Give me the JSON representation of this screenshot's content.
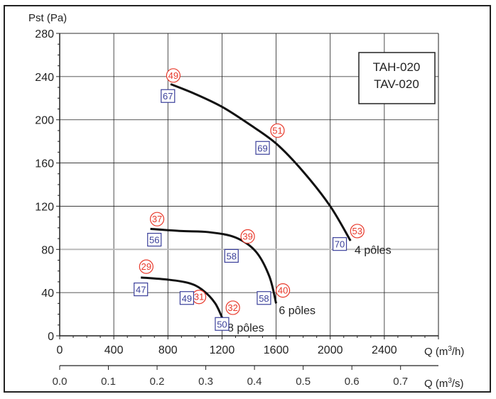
{
  "chart_data": {
    "type": "line",
    "ylabel": "Pst (Pa)",
    "xlabel": "Q (m³/h)",
    "xlabel2": "Q (m³/s)",
    "xlim": [
      0,
      2800
    ],
    "ylim": [
      0,
      280
    ],
    "xticks": [
      0,
      400,
      800,
      1200,
      1600,
      2000,
      2400
    ],
    "yticks": [
      0,
      40,
      80,
      120,
      160,
      200,
      240,
      280
    ],
    "x2ticks": [
      "0.0",
      "0.1",
      "0.2",
      "0.3",
      "0.4",
      "0.5",
      "0.6",
      "0.7"
    ],
    "grid": true,
    "legend_box": [
      "TAH-020",
      "TAV-020"
    ],
    "legend_placement": "top-right",
    "series": [
      {
        "name": "4 pôles",
        "x": [
          820,
          1000,
          1200,
          1400,
          1600,
          1800,
          2000,
          2150
        ],
        "y": [
          233,
          224,
          212,
          196,
          178,
          152,
          120,
          88
        ]
      },
      {
        "name": "6 pôles",
        "x": [
          670,
          900,
          1100,
          1300,
          1450,
          1550,
          1600
        ],
        "y": [
          99,
          97,
          96,
          91,
          78,
          55,
          30
        ]
      },
      {
        "name": "8 pôles",
        "x": [
          600,
          800,
          950,
          1050,
          1150,
          1220
        ],
        "y": [
          54,
          52,
          49,
          43,
          30,
          11
        ]
      }
    ],
    "series_labels": [
      {
        "text": "4 pôles",
        "x": 2180,
        "y": 80
      },
      {
        "text": "6 pôles",
        "x": 1620,
        "y": 24
      },
      {
        "text": "8 pôles",
        "x": 1240,
        "y": 8
      }
    ],
    "circle_annotations": [
      {
        "text": "49",
        "x": 840,
        "y": 241
      },
      {
        "text": "51",
        "x": 1610,
        "y": 190
      },
      {
        "text": "53",
        "x": 2200,
        "y": 97
      },
      {
        "text": "37",
        "x": 720,
        "y": 108
      },
      {
        "text": "39",
        "x": 1390,
        "y": 92
      },
      {
        "text": "40",
        "x": 1650,
        "y": 42
      },
      {
        "text": "29",
        "x": 640,
        "y": 64
      },
      {
        "text": "31",
        "x": 1030,
        "y": 36
      },
      {
        "text": "32",
        "x": 1280,
        "y": 26
      }
    ],
    "box_annotations": [
      {
        "text": "67",
        "x": 800,
        "y": 222
      },
      {
        "text": "69",
        "x": 1500,
        "y": 174
      },
      {
        "text": "70",
        "x": 2070,
        "y": 85
      },
      {
        "text": "56",
        "x": 700,
        "y": 89
      },
      {
        "text": "58",
        "x": 1270,
        "y": 74
      },
      {
        "text": "58",
        "x": 1510,
        "y": 35
      },
      {
        "text": "47",
        "x": 600,
        "y": 43
      },
      {
        "text": "49",
        "x": 940,
        "y": 35
      },
      {
        "text": "50",
        "x": 1200,
        "y": 11
      }
    ],
    "colors": {
      "curve": "#111111",
      "circle": "#e8392b",
      "box": "#3a3f9a",
      "grid": "#222222",
      "grid_highlight": "#bbbbbb"
    }
  }
}
